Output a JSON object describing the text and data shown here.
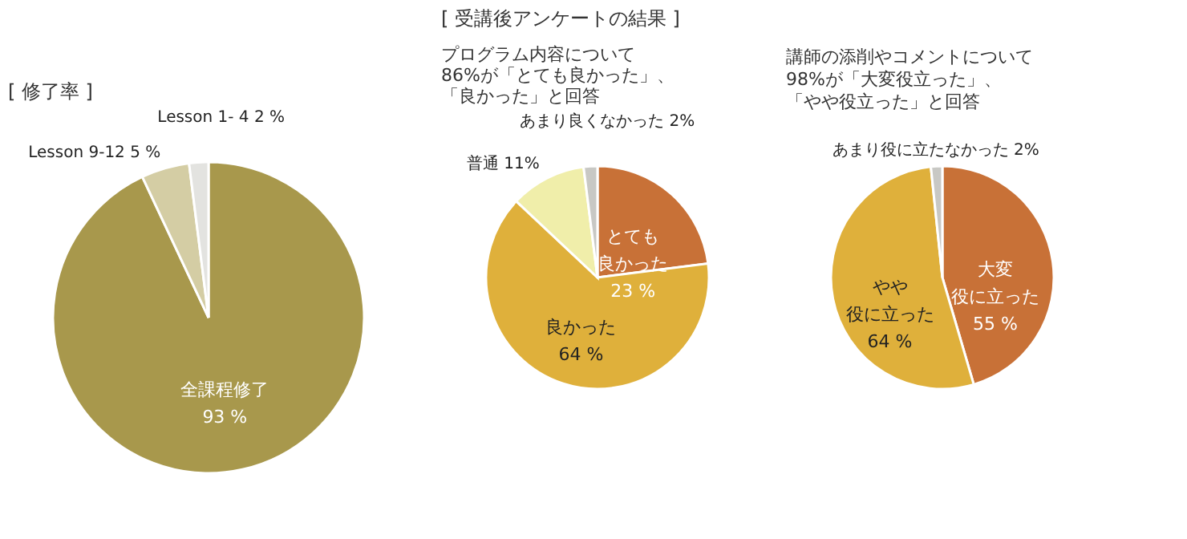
{
  "chart_data": [
    {
      "type": "pie",
      "title": "[ 修了率 ]",
      "categories": [
        "全課程修了",
        "Lesson 9-12",
        "Lesson 1- 4"
      ],
      "values": [
        93,
        5,
        2
      ],
      "colors": [
        "#a8984c",
        "#d4cda4",
        "#e3e3e0"
      ],
      "value_labels": [
        "93 %",
        "5 %",
        "2 %"
      ],
      "legend": false
    },
    {
      "type": "pie",
      "title": "[ 受講後アンケートの結果 ]",
      "subtitle": [
        "プログラム内容について",
        "86%が「とても良かった」、",
        "「良かった」と回答"
      ],
      "categories": [
        "とても良かった",
        "良かった",
        "普通",
        "あまり良くなかった"
      ],
      "values": [
        23,
        64,
        11,
        2
      ],
      "colors": [
        "#c87137",
        "#dfb03b",
        "#f0eeaa",
        "#c8c8c4"
      ],
      "value_labels": [
        "23 %",
        "64 %",
        "11%",
        "2%"
      ],
      "legend": false
    },
    {
      "type": "pie",
      "subtitle": [
        "講師の添削やコメントについて",
        "98%が「大変役立った」、",
        "「やや役立った」と回答"
      ],
      "categories": [
        "大変役に立った",
        "やや役に立った",
        "あまり役に立たなかった"
      ],
      "values": [
        55,
        64,
        2
      ],
      "colors": [
        "#c87137",
        "#dfb03b",
        "#c8c8c4"
      ],
      "value_labels": [
        "55 %",
        "64 %",
        "2%"
      ],
      "legend": false
    }
  ]
}
